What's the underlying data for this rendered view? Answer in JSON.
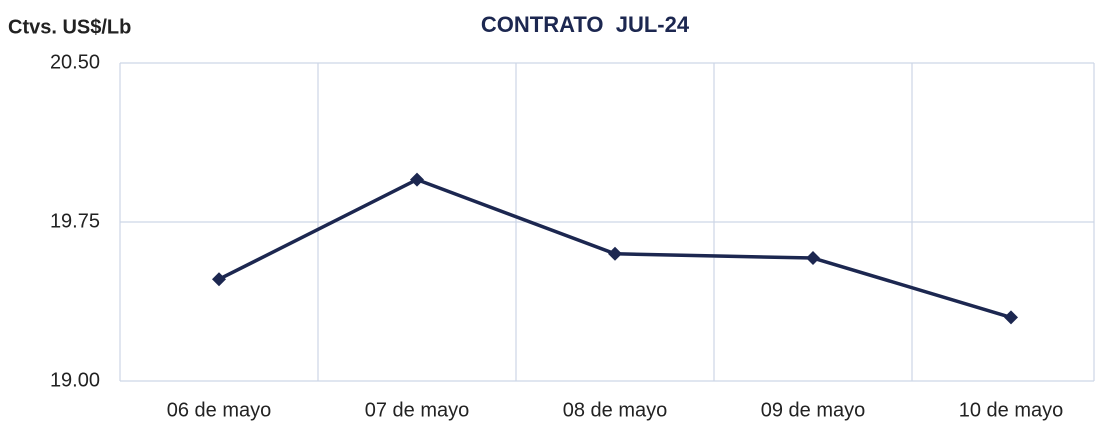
{
  "chart_data": {
    "type": "line",
    "title": "CONTRATO  JUL-24",
    "y_label": "Ctvs. US$/Lb",
    "categories": [
      "06 de mayo",
      "07 de mayo",
      "08 de mayo",
      "09 de mayo",
      "10 de mayo"
    ],
    "series": [
      {
        "name": "JUL-24",
        "color": "#1c2750",
        "values": [
          19.48,
          19.95,
          19.6,
          19.58,
          19.3
        ]
      }
    ],
    "ylim": [
      19,
      20.5
    ],
    "yticks": [
      {
        "value": 19,
        "label": "19.00"
      },
      19.75,
      {
        "value": 20.5,
        "label": "20.50"
      }
    ],
    "grid": true
  }
}
